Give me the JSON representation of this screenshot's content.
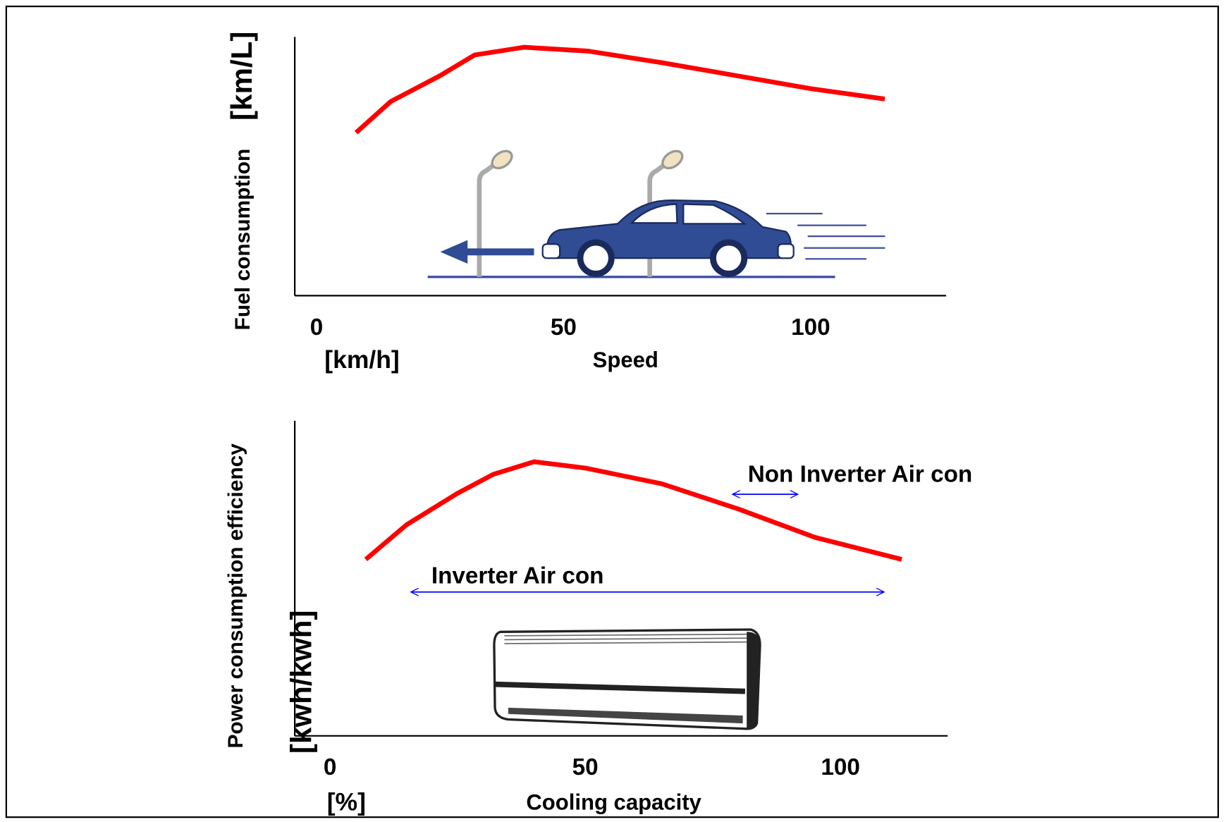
{
  "chart_data": [
    {
      "type": "line",
      "xlabel": "Speed",
      "xunit": "[km/h]",
      "ylabel": "Fuel consumption",
      "yunit": "[km/L]",
      "x": [
        8,
        15,
        25,
        32,
        42,
        55,
        70,
        85,
        100,
        115
      ],
      "values": [
        63,
        75,
        85,
        93,
        96,
        94.5,
        90,
        85,
        80,
        76
      ],
      "color": "#ff0000",
      "xlim": [
        -4.4,
        127.4
      ],
      "xticks": [
        0,
        50,
        100
      ],
      "ylim": [
        0,
        100
      ],
      "annotations": []
    },
    {
      "type": "line",
      "xlabel": "Cooling capacity",
      "xunit": "[%]",
      "ylabel": "Power consumption  efficiency",
      "yunit": "[kwh/kwh]",
      "x": [
        7,
        15,
        25,
        32,
        40,
        50,
        65,
        80,
        95,
        112
      ],
      "values": [
        56,
        67,
        77,
        83,
        87,
        85,
        80,
        72,
        63,
        56
      ],
      "color": "#ff0000",
      "xlim": [
        -6.9,
        121
      ],
      "xticks": [
        0,
        50,
        100
      ],
      "ylim": [
        0,
        100
      ],
      "annotations": [
        {
          "text": "Non Inverter Air con",
          "xrange": [
            79,
            91.5
          ]
        },
        {
          "text": "Inverter Air con",
          "xrange": [
            16,
            108.4
          ]
        }
      ]
    }
  ]
}
